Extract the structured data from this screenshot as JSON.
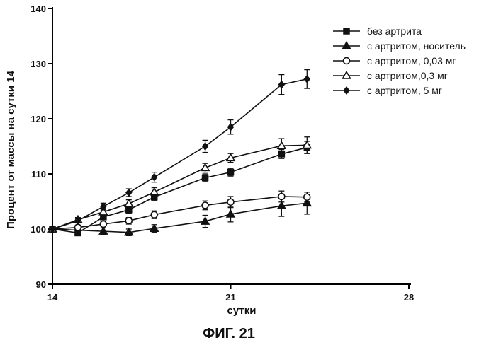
{
  "chart_data": {
    "type": "line",
    "title": "",
    "caption": "ФИГ. 21",
    "xlabel": "сутки",
    "ylabel": "Процент от массы на сутки 14",
    "xlim": [
      14,
      28
    ],
    "ylim": [
      90,
      140
    ],
    "xticks": [
      14,
      21,
      28
    ],
    "yticks": [
      90,
      100,
      110,
      120,
      130,
      140
    ],
    "grid": false,
    "legend_position": "top-right",
    "series": [
      {
        "name": "без артрита",
        "marker": "square-filled",
        "x": [
          14,
          15,
          16,
          17,
          18,
          20,
          21,
          23,
          24
        ],
        "y": [
          100,
          99.3,
          102.2,
          103.5,
          105.8,
          109.3,
          110.3,
          113.6,
          114.8
        ],
        "err": [
          0,
          0.4,
          0.5,
          0.6,
          0.7,
          0.7,
          0.7,
          0.8,
          1.1
        ]
      },
      {
        "name": "с артритом, носитель",
        "marker": "triangle-filled",
        "x": [
          14,
          16,
          17,
          18,
          20,
          21,
          23,
          24
        ],
        "y": [
          100,
          99.6,
          99.4,
          100.1,
          101.4,
          102.7,
          104.2,
          104.7
        ],
        "err": [
          0,
          0.6,
          0.6,
          0.7,
          1.1,
          1.4,
          1.9,
          2.0
        ]
      },
      {
        "name": "с артритом, 0,03 мг",
        "marker": "circle-open",
        "x": [
          14,
          15,
          16,
          17,
          18,
          20,
          21,
          23,
          24
        ],
        "y": [
          100,
          100.3,
          100.9,
          101.5,
          102.6,
          104.3,
          104.9,
          105.9,
          105.8
        ],
        "err": [
          0,
          0.4,
          0.5,
          0.6,
          0.7,
          0.8,
          1.0,
          1.0,
          0.9
        ]
      },
      {
        "name": "с артритом,0,3 мг",
        "marker": "triangle-open",
        "x": [
          14,
          15,
          16,
          17,
          18,
          20,
          21,
          23,
          24
        ],
        "y": [
          100,
          101.7,
          103.1,
          104.6,
          106.7,
          111.1,
          112.9,
          115.1,
          115.2
        ],
        "err": [
          0,
          0.4,
          0.6,
          0.7,
          0.8,
          0.8,
          0.8,
          1.3,
          1.5
        ]
      },
      {
        "name": "с артритом, 5 мг",
        "marker": "diamond-filled",
        "x": [
          14,
          15,
          16,
          17,
          18,
          20,
          21,
          23,
          24
        ],
        "y": [
          100,
          101.5,
          104.1,
          106.6,
          109.4,
          115.0,
          118.5,
          126.2,
          127.2
        ],
        "err": [
          0,
          0.4,
          0.6,
          0.7,
          0.9,
          1.1,
          1.3,
          1.8,
          1.7
        ]
      }
    ]
  }
}
